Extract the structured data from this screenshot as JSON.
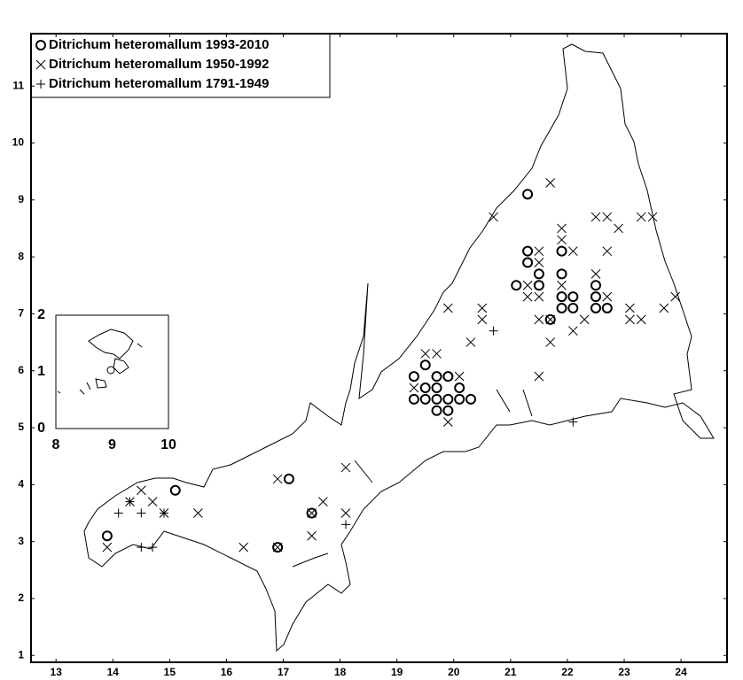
{
  "chart_data": [
    {
      "type": "scatter",
      "xlim": [
        12.56,
        24.81
      ],
      "ylim": [
        0.88,
        11.92
      ],
      "xticks": [
        13,
        14,
        15,
        16,
        17,
        18,
        19,
        20,
        21,
        22,
        23,
        24
      ],
      "yticks": [
        1,
        2,
        3,
        4,
        5,
        6,
        7,
        8,
        9,
        10,
        11
      ],
      "legend": "upper left",
      "series": [
        {
          "name": "Ditrichum heteromallum 1993-2010",
          "color": "#000000",
          "marker": "circle",
          "x": [
            13.9,
            15.1,
            17.1,
            17.5,
            16.9,
            19.3,
            19.3,
            19.5,
            19.5,
            19.5,
            19.7,
            19.7,
            19.7,
            19.7,
            19.9,
            19.9,
            19.9,
            20.1,
            20.1,
            20.3,
            21.3,
            21.3,
            21.3,
            21.1,
            21.5,
            21.5,
            21.9,
            21.9,
            21.9,
            21.9,
            22.1,
            22.1,
            21.7,
            22.5,
            22.5,
            22.5,
            22.7
          ],
          "values": [
            3.1,
            3.9,
            4.1,
            3.5,
            2.9,
            5.9,
            5.5,
            6.1,
            5.7,
            5.5,
            5.9,
            5.7,
            5.5,
            5.3,
            5.9,
            5.5,
            5.3,
            5.7,
            5.5,
            5.5,
            9.1,
            8.1,
            7.9,
            7.5,
            7.7,
            7.5,
            8.1,
            7.7,
            7.3,
            7.1,
            7.3,
            7.1,
            6.9,
            7.5,
            7.3,
            7.1,
            7.1
          ]
        },
        {
          "name": "Ditrichum heteromallum 1950-1992",
          "color": "#000000",
          "marker": "x",
          "x": [
            13.9,
            14.5,
            14.3,
            14.7,
            14.9,
            15.5,
            16.3,
            16.9,
            16.9,
            17.5,
            17.5,
            17.7,
            18.1,
            18.1,
            19.5,
            19.7,
            19.3,
            19.9,
            20.1,
            19.9,
            20.3,
            20.5,
            20.5,
            20.7,
            21.7,
            21.5,
            21.5,
            21.5,
            21.3,
            21.3,
            21.9,
            21.9,
            22.1,
            21.9,
            21.5,
            21.7,
            21.5,
            22.1,
            22.3,
            22.5,
            22.7,
            22.9,
            22.7,
            22.5,
            22.7,
            23.1,
            23.1,
            23.3,
            23.3,
            23.5,
            23.7,
            23.9,
            21.7
          ],
          "values": [
            2.9,
            3.9,
            3.7,
            3.7,
            3.5,
            3.5,
            2.9,
            4.1,
            2.9,
            3.5,
            3.1,
            3.7,
            4.3,
            3.5,
            6.3,
            6.3,
            5.7,
            5.1,
            5.9,
            7.1,
            6.5,
            7.1,
            6.9,
            8.7,
            9.3,
            8.1,
            7.9,
            7.3,
            7.5,
            7.3,
            8.5,
            8.3,
            8.1,
            7.5,
            6.9,
            6.5,
            5.9,
            6.7,
            6.9,
            8.7,
            8.7,
            8.5,
            8.1,
            7.7,
            7.3,
            7.1,
            6.9,
            6.9,
            8.7,
            8.7,
            7.1,
            7.3,
            6.9
          ]
        },
        {
          "name": "Ditrichum heteromallum 1791-1949",
          "color": "#000000",
          "marker": "plus",
          "x": [
            14.1,
            14.3,
            14.5,
            14.5,
            14.7,
            14.9,
            18.1,
            20.7,
            22.1
          ],
          "values": [
            3.5,
            3.7,
            3.5,
            2.9,
            2.9,
            3.5,
            3.3,
            6.7,
            5.1
          ]
        }
      ]
    },
    {
      "type": "scatter",
      "xlim": [
        8,
        10
      ],
      "ylim": [
        0,
        2
      ],
      "xticks": [
        8,
        9,
        10
      ],
      "yticks": [
        0,
        1,
        2
      ],
      "series": []
    }
  ]
}
